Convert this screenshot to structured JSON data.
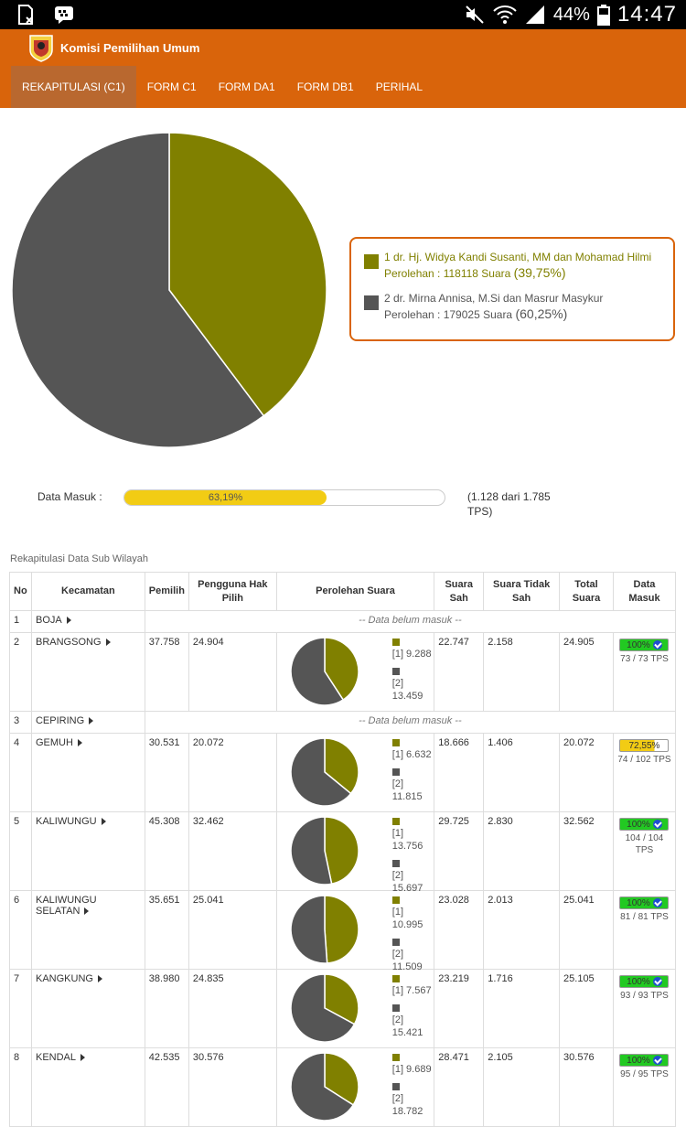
{
  "statusbar": {
    "battery_percent": "44%",
    "time": "14:47"
  },
  "header": {
    "app_title": "Komisi Pemilihan Umum",
    "tabs": [
      {
        "label": "REKAPITULASI (C1)",
        "active": true
      },
      {
        "label": "FORM C1"
      },
      {
        "label": "FORM DA1"
      },
      {
        "label": "FORM DB1"
      },
      {
        "label": "PERIHAL"
      }
    ]
  },
  "chart_data": {
    "type": "pie",
    "slices": [
      {
        "name": "1 dr. Hj. Widya Kandi Susanti, MM dan Mohamad Hilmi",
        "label": "Perolehan : 118118 Suara",
        "pct_label": "(39,75%)",
        "value": 118118,
        "color": "#808000"
      },
      {
        "name": "2 dr. Mirna Annisa, M.Si dan Masrur Masykur",
        "label": "Perolehan : 179025 Suara",
        "pct_label": "(60,25%)",
        "value": 179025,
        "color": "#555555"
      }
    ]
  },
  "colors": {
    "accent": "#d9640b",
    "candidate1": "#808000",
    "candidate2": "#555555",
    "progress": "#f2cc14",
    "complete": "#22c922"
  },
  "data_masuk": {
    "label": "Data Masuk :",
    "percent": 63.19,
    "percent_label": "63,19%",
    "note": "(1.128 dari 1.785 TPS)"
  },
  "table": {
    "title": "Rekapitulasi Data Sub Wilayah",
    "headers": [
      "No",
      "Kecamatan",
      "Pemilih",
      "Pengguna Hak Pilih",
      "Perolehan Suara",
      "Suara Sah",
      "Suara Tidak Sah",
      "Total Suara",
      "Data Masuk"
    ],
    "empty_text": "-- Data belum masuk --",
    "rows": [
      {
        "no": "1",
        "kecamatan": "BOJA",
        "empty": true
      },
      {
        "no": "2",
        "kecamatan": "BRANGSONG",
        "pemilih": "37.758",
        "pengguna": "24.904",
        "v1": 9288,
        "v2": 13459,
        "v1_label": "[1] 9.288",
        "v2_label": "[2] 13.459",
        "sah": "22.747",
        "tidak_sah": "2.158",
        "total": "24.905",
        "dm_pct": 100,
        "dm_label": "100%",
        "dm_tps": "73 / 73 TPS",
        "full": true
      },
      {
        "no": "3",
        "kecamatan": "CEPIRING",
        "empty": true
      },
      {
        "no": "4",
        "kecamatan": "GEMUH",
        "pemilih": "30.531",
        "pengguna": "20.072",
        "v1": 6632,
        "v2": 11815,
        "v1_label": "[1] 6.632",
        "v2_label": "[2] 11.815",
        "sah": "18.666",
        "tidak_sah": "1.406",
        "total": "20.072",
        "dm_pct": 72.55,
        "dm_label": "72,55%",
        "dm_tps": "74 / 102 TPS",
        "full": false
      },
      {
        "no": "5",
        "kecamatan": "KALIWUNGU",
        "pemilih": "45.308",
        "pengguna": "32.462",
        "v1": 13756,
        "v2": 15697,
        "v1_label": "[1] 13.756",
        "v2_label": "[2] 15.697",
        "sah": "29.725",
        "tidak_sah": "2.830",
        "total": "32.562",
        "dm_pct": 100,
        "dm_label": "100%",
        "dm_tps": "104 / 104 TPS",
        "full": true
      },
      {
        "no": "6",
        "kecamatan": "KALIWUNGU SELATAN",
        "pemilih": "35.651",
        "pengguna": "25.041",
        "v1": 10995,
        "v2": 11509,
        "v1_label": "[1] 10.995",
        "v2_label": "[2] 11.509",
        "sah": "23.028",
        "tidak_sah": "2.013",
        "total": "25.041",
        "dm_pct": 100,
        "dm_label": "100%",
        "dm_tps": "81 / 81 TPS",
        "full": true
      },
      {
        "no": "7",
        "kecamatan": "KANGKUNG",
        "pemilih": "38.980",
        "pengguna": "24.835",
        "v1": 7567,
        "v2": 15421,
        "v1_label": "[1] 7.567",
        "v2_label": "[2] 15.421",
        "sah": "23.219",
        "tidak_sah": "1.716",
        "total": "25.105",
        "dm_pct": 100,
        "dm_label": "100%",
        "dm_tps": "93 / 93 TPS",
        "full": true
      },
      {
        "no": "8",
        "kecamatan": "KENDAL",
        "pemilih": "42.535",
        "pengguna": "30.576",
        "v1": 9689,
        "v2": 18782,
        "v1_label": "[1] 9.689",
        "v2_label": "[2] 18.782",
        "sah": "28.471",
        "tidak_sah": "2.105",
        "total": "30.576",
        "dm_pct": 100,
        "dm_label": "100%",
        "dm_tps": "95 / 95 TPS",
        "full": true
      }
    ]
  }
}
